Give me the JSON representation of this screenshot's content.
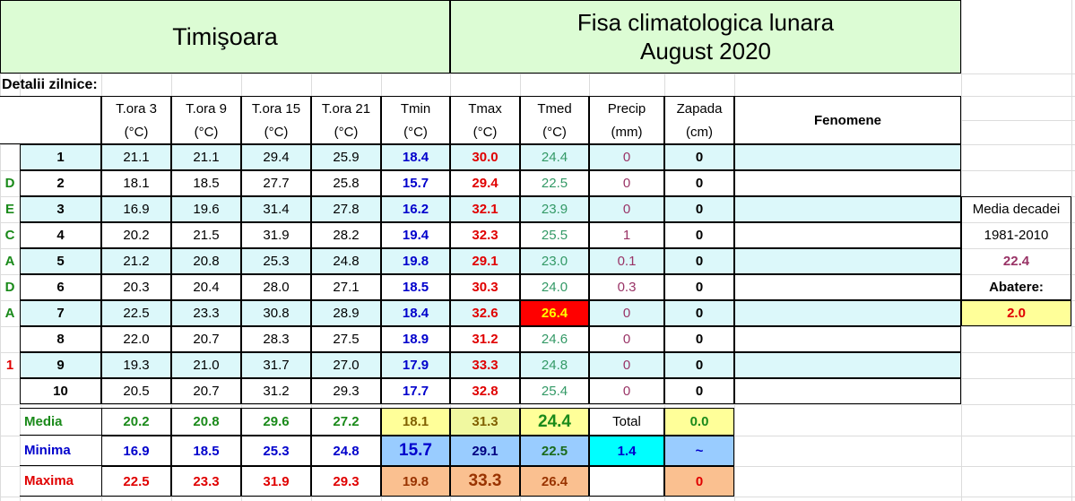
{
  "header": {
    "station": "Timişoara",
    "title_line1": "Fisa climatologica lunara",
    "title_line2": "August 2020",
    "daily_label": "Detalii zilnice:"
  },
  "table": {
    "columns": [
      {
        "name": "T.ora 3",
        "unit": "(°C)"
      },
      {
        "name": "T.ora 9",
        "unit": "(°C)"
      },
      {
        "name": "T.ora 15",
        "unit": "(°C)"
      },
      {
        "name": "T.ora 21",
        "unit": "(°C)"
      },
      {
        "name": "Tmin",
        "unit": "(°C)"
      },
      {
        "name": "Tmax",
        "unit": "(°C)"
      },
      {
        "name": "Tmed",
        "unit": "(°C)"
      },
      {
        "name": "Precip",
        "unit": "(mm)"
      },
      {
        "name": "Zapada",
        "unit": "(cm)"
      }
    ],
    "fenomene": "Fenomene",
    "decade_label": [
      "D",
      "E",
      "C",
      "A",
      "D",
      "A",
      "1"
    ],
    "rows": [
      {
        "day": "1",
        "values": [
          "21.1",
          "21.1",
          "29.4",
          "25.9",
          "18.4",
          "30.0",
          "24.4",
          "0",
          "0"
        ]
      },
      {
        "day": "2",
        "values": [
          "18.1",
          "18.5",
          "27.7",
          "25.8",
          "15.7",
          "29.4",
          "22.5",
          "0",
          "0"
        ]
      },
      {
        "day": "3",
        "values": [
          "16.9",
          "19.6",
          "31.4",
          "27.8",
          "16.2",
          "32.1",
          "23.9",
          "0",
          "0"
        ]
      },
      {
        "day": "4",
        "values": [
          "20.2",
          "21.5",
          "31.9",
          "28.2",
          "19.4",
          "32.3",
          "25.5",
          "1",
          "0"
        ]
      },
      {
        "day": "5",
        "values": [
          "21.2",
          "20.8",
          "25.3",
          "24.8",
          "19.8",
          "29.1",
          "23.0",
          "0.1",
          "0"
        ]
      },
      {
        "day": "6",
        "values": [
          "20.3",
          "20.4",
          "28.0",
          "27.1",
          "18.5",
          "30.3",
          "24.0",
          "0.3",
          "0"
        ]
      },
      {
        "day": "7",
        "values": [
          "22.5",
          "23.3",
          "30.8",
          "28.9",
          "18.4",
          "32.6",
          "26.4",
          "0",
          "0"
        ]
      },
      {
        "day": "8",
        "values": [
          "22.0",
          "20.7",
          "28.3",
          "27.5",
          "18.9",
          "31.2",
          "24.6",
          "0",
          "0"
        ]
      },
      {
        "day": "9",
        "values": [
          "19.3",
          "21.0",
          "31.7",
          "27.0",
          "17.9",
          "33.3",
          "24.8",
          "0",
          "0"
        ]
      },
      {
        "day": "10",
        "values": [
          "20.5",
          "20.7",
          "31.2",
          "29.3",
          "17.7",
          "32.8",
          "25.4",
          "0",
          "0"
        ]
      }
    ],
    "summary": [
      {
        "label": "Media",
        "values": [
          "20.2",
          "20.8",
          "29.6",
          "27.2",
          "18.1",
          "31.3",
          "24.4",
          "Total",
          "0.0"
        ]
      },
      {
        "label": "Minima",
        "values": [
          "16.9",
          "18.5",
          "25.3",
          "24.8",
          "15.7",
          "29.1",
          "22.5",
          "1.4",
          "~"
        ]
      },
      {
        "label": "Maxima",
        "values": [
          "22.5",
          "23.3",
          "31.9",
          "29.3",
          "19.8",
          "33.3",
          "26.4",
          null,
          "0"
        ]
      }
    ]
  },
  "side_panel": {
    "label": "Media decadei",
    "period": "1981-2010",
    "mean": "22.4",
    "deviation_label": "Abatere:",
    "deviation": "2.0"
  }
}
